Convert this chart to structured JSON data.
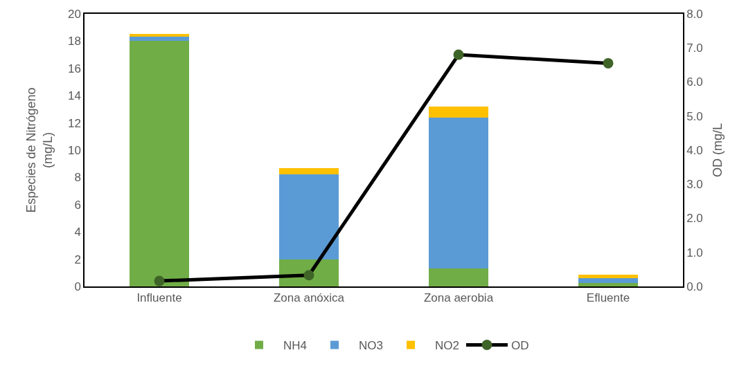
{
  "chart_data": {
    "type": "bar",
    "stacked": true,
    "categories": [
      "Influente",
      "Zona anóxica",
      "Zona aerobia",
      "Efluente"
    ],
    "series": [
      {
        "name": "NH4",
        "color": "#70ad47",
        "values": [
          18.0,
          2.0,
          1.3,
          0.25
        ]
      },
      {
        "name": "NO3",
        "color": "#5b9bd5",
        "values": [
          0.35,
          6.2,
          11.1,
          0.35
        ]
      },
      {
        "name": "NO2",
        "color": "#ffc000",
        "values": [
          0.2,
          0.5,
          0.8,
          0.25
        ]
      },
      {
        "name": "OD",
        "type": "line",
        "axis": "y2",
        "color": "#000000",
        "colors": [
          "#3f6427",
          "#3f6427",
          "#3f6427",
          "#3f6427"
        ],
        "values": [
          0.16,
          0.33,
          6.8,
          6.55
        ]
      }
    ],
    "ylabel": "Especies de Nitrógeno\n(mg/L)",
    "y2label": "OD (mg/L",
    "ylim": [
      0,
      20
    ],
    "yticks": [
      0,
      2,
      4,
      6,
      8,
      10,
      12,
      14,
      16,
      18,
      20
    ],
    "y2lim": [
      0,
      8
    ],
    "y2ticks": [
      {
        "value": 0,
        "label": "0.0"
      },
      {
        "value": 1,
        "label": "1.0"
      },
      {
        "value": 2,
        "label": "2.0"
      },
      {
        "value": 3,
        "label": "3.0"
      },
      {
        "value": 4,
        "label": "4.0"
      },
      {
        "value": 5,
        "label": "5.0"
      },
      {
        "value": 6,
        "label": "6.0"
      },
      {
        "value": 7,
        "label": "7.0"
      },
      {
        "value": 8,
        "label": "8.0"
      }
    ],
    "grid": false,
    "legend": "bottom",
    "marker": "circle",
    "line_style": "solid"
  }
}
